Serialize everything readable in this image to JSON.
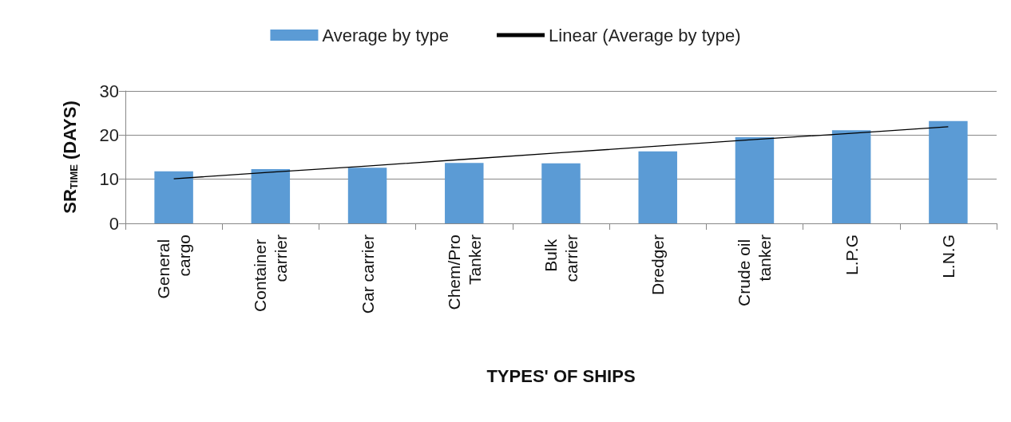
{
  "chart_data": {
    "type": "bar",
    "xlabel": "TYPES' OF SHIPS",
    "ylabel": "SR$_{TIME}$ (DAYS)",
    "categories": [
      "General cargo",
      "Container carrier",
      "Car carrier",
      "Chem/Pro Tanker",
      "Bulk carrier",
      "Dredger",
      "Crude oil tanker",
      "L.P.G",
      "L.N.G"
    ],
    "series": [
      {
        "name": "Average by type",
        "color": "#5b9bd5",
        "values": [
          11.8,
          12.3,
          12.6,
          13.7,
          13.6,
          16.3,
          19.5,
          21.1,
          23.2
        ]
      },
      {
        "name": "Linear (Average by type)",
        "type": "line",
        "color": "#000000",
        "marker": "none",
        "values": [
          10.1,
          11.6,
          13.0,
          14.5,
          16.0,
          17.5,
          19.0,
          20.4,
          21.9
        ]
      }
    ],
    "ylim": [
      0,
      30
    ],
    "yticks": [
      0,
      10,
      20,
      30
    ],
    "grid": "y",
    "legend": "top"
  }
}
